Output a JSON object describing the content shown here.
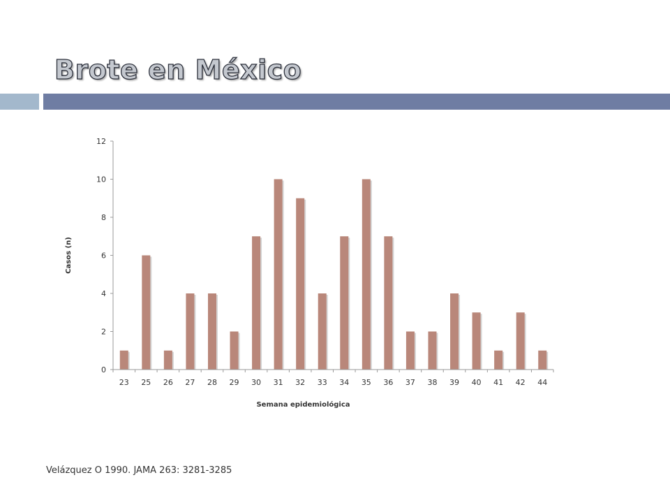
{
  "slide": {
    "title": "Brote en México",
    "citation": "Velázquez O 1990. JAMA 263: 3281-3285",
    "accent_colors": [
      "#a3b8cc",
      "#6f7da3"
    ]
  },
  "chart_data": {
    "type": "bar",
    "xlabel": "Semana epidemiológica",
    "ylabel": "Casos (n)",
    "ylim": [
      0,
      12
    ],
    "yticks": [
      0,
      2,
      4,
      6,
      8,
      10,
      12
    ],
    "grid": false,
    "bar_color": "#b9877a",
    "categories": [
      "23",
      "25",
      "26",
      "27",
      "28",
      "29",
      "30",
      "31",
      "32",
      "33",
      "34",
      "35",
      "36",
      "37",
      "38",
      "39",
      "40",
      "41",
      "42",
      "44"
    ],
    "values": [
      1,
      6,
      1,
      4,
      4,
      2,
      7,
      10,
      9,
      4,
      7,
      10,
      7,
      2,
      2,
      4,
      3,
      1,
      3,
      1
    ]
  }
}
